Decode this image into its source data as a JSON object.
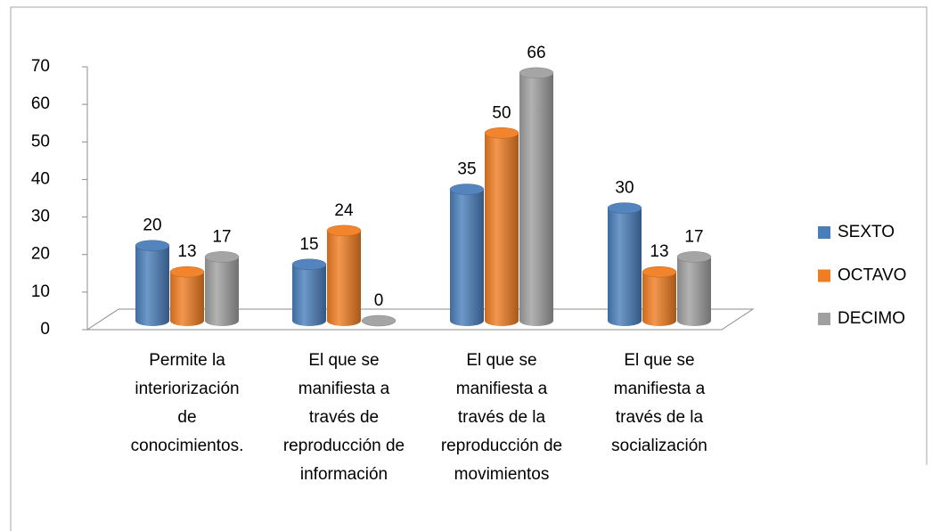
{
  "chart_data": {
    "type": "bar3d",
    "categories": [
      "Permite la interiorización de conocimientos.",
      "El que se manifiesta a través de reproducción de información",
      "El que se manifiesta a través de la reproducción de movimientos",
      "El que se manifiesta a través de la socialización"
    ],
    "series": [
      {
        "name": "SEXTO",
        "color": "#4a7ebb",
        "values": [
          20,
          15,
          35,
          30
        ]
      },
      {
        "name": "OCTAVO",
        "color": "#f07d22",
        "values": [
          13,
          24,
          50,
          13
        ]
      },
      {
        "name": "DECIMO",
        "color": "#a0a0a0",
        "values": [
          17,
          0,
          66,
          17
        ]
      }
    ],
    "ylim": [
      0,
      70
    ],
    "yticks": [
      0,
      10,
      20,
      30,
      40,
      50,
      60,
      70
    ],
    "legend": "right"
  }
}
